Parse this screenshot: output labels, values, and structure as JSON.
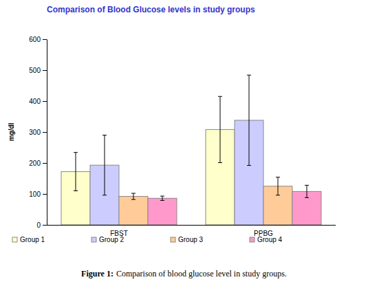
{
  "chart_data": {
    "type": "bar",
    "title": "Comparison of Blood Glucose levels in study groups",
    "y_label": "mg/dl",
    "categories": [
      "FBST",
      "PPBG"
    ],
    "series": [
      {
        "name": "Group 1",
        "color": "#ffffcc",
        "values": [
          172,
          308
        ],
        "errors": [
          62,
          107
        ]
      },
      {
        "name": "Group 2",
        "color": "#ccccff",
        "values": [
          193,
          338
        ],
        "errors": [
          97,
          146
        ]
      },
      {
        "name": "Group 3",
        "color": "#ffcc99",
        "values": [
          92,
          125
        ],
        "errors": [
          10,
          29
        ]
      },
      {
        "name": "Group 4",
        "color": "#ff99cc",
        "values": [
          86,
          108
        ],
        "errors": [
          7,
          20
        ]
      }
    ],
    "ylim": [
      0,
      600
    ],
    "yticks": [
      0,
      100,
      200,
      300,
      400,
      500,
      600
    ],
    "grid": false,
    "legend": "bottom",
    "caption": {
      "label": "Figure 1:",
      "text": "Comparison of blood glucose level in study groups."
    }
  }
}
